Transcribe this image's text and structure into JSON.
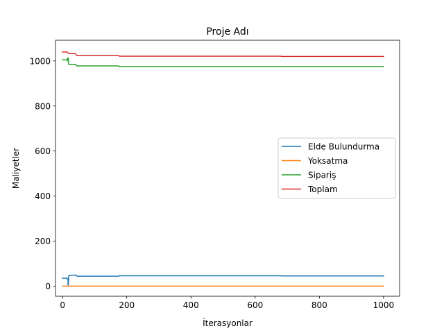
{
  "chart_data": {
    "type": "line",
    "title": "Proje Adı",
    "xlabel": "İterasyonlar",
    "ylabel": "Maliyetler",
    "xlim": [
      -22,
      1050
    ],
    "ylim": [
      -45,
      1092
    ],
    "xticks": [
      0,
      200,
      400,
      600,
      800,
      1000
    ],
    "yticks": [
      0,
      200,
      400,
      600,
      800,
      1000
    ],
    "legend_position": "center-right",
    "grid": false,
    "series": [
      {
        "name": "Elde Bulundurma",
        "color": "#1f77b4",
        "points": [
          [
            0,
            35
          ],
          [
            14,
            35
          ],
          [
            15,
            31
          ],
          [
            17,
            31
          ],
          [
            17,
            5
          ],
          [
            18,
            5
          ],
          [
            19,
            40
          ],
          [
            20,
            48
          ],
          [
            30,
            48
          ],
          [
            38,
            48
          ],
          [
            40,
            50
          ],
          [
            43,
            47
          ],
          [
            45,
            44
          ],
          [
            175,
            44
          ],
          [
            177,
            46
          ],
          [
            680,
            46
          ],
          [
            682,
            45
          ],
          [
            1000,
            45
          ]
        ]
      },
      {
        "name": "Yoksatma",
        "color": "#ff7f0e",
        "points": [
          [
            0,
            0
          ],
          [
            1000,
            0
          ]
        ]
      },
      {
        "name": "Sipariş",
        "color": "#2ca02c",
        "points": [
          [
            0,
            1005
          ],
          [
            14,
            1005
          ],
          [
            15,
            1000
          ],
          [
            16,
            1013
          ],
          [
            18,
            1013
          ],
          [
            19,
            985
          ],
          [
            30,
            985
          ],
          [
            40,
            985
          ],
          [
            42,
            982
          ],
          [
            45,
            978
          ],
          [
            175,
            978
          ],
          [
            177,
            975
          ],
          [
            1000,
            975
          ]
        ]
      },
      {
        "name": "Toplam",
        "color": "#d62728",
        "points": [
          [
            0,
            1040
          ],
          [
            14,
            1040
          ],
          [
            17,
            1035
          ],
          [
            25,
            1033
          ],
          [
            40,
            1033
          ],
          [
            42,
            1028
          ],
          [
            45,
            1024
          ],
          [
            175,
            1024
          ],
          [
            177,
            1021
          ],
          [
            680,
            1021
          ],
          [
            682,
            1020
          ],
          [
            1000,
            1020
          ]
        ]
      }
    ]
  }
}
